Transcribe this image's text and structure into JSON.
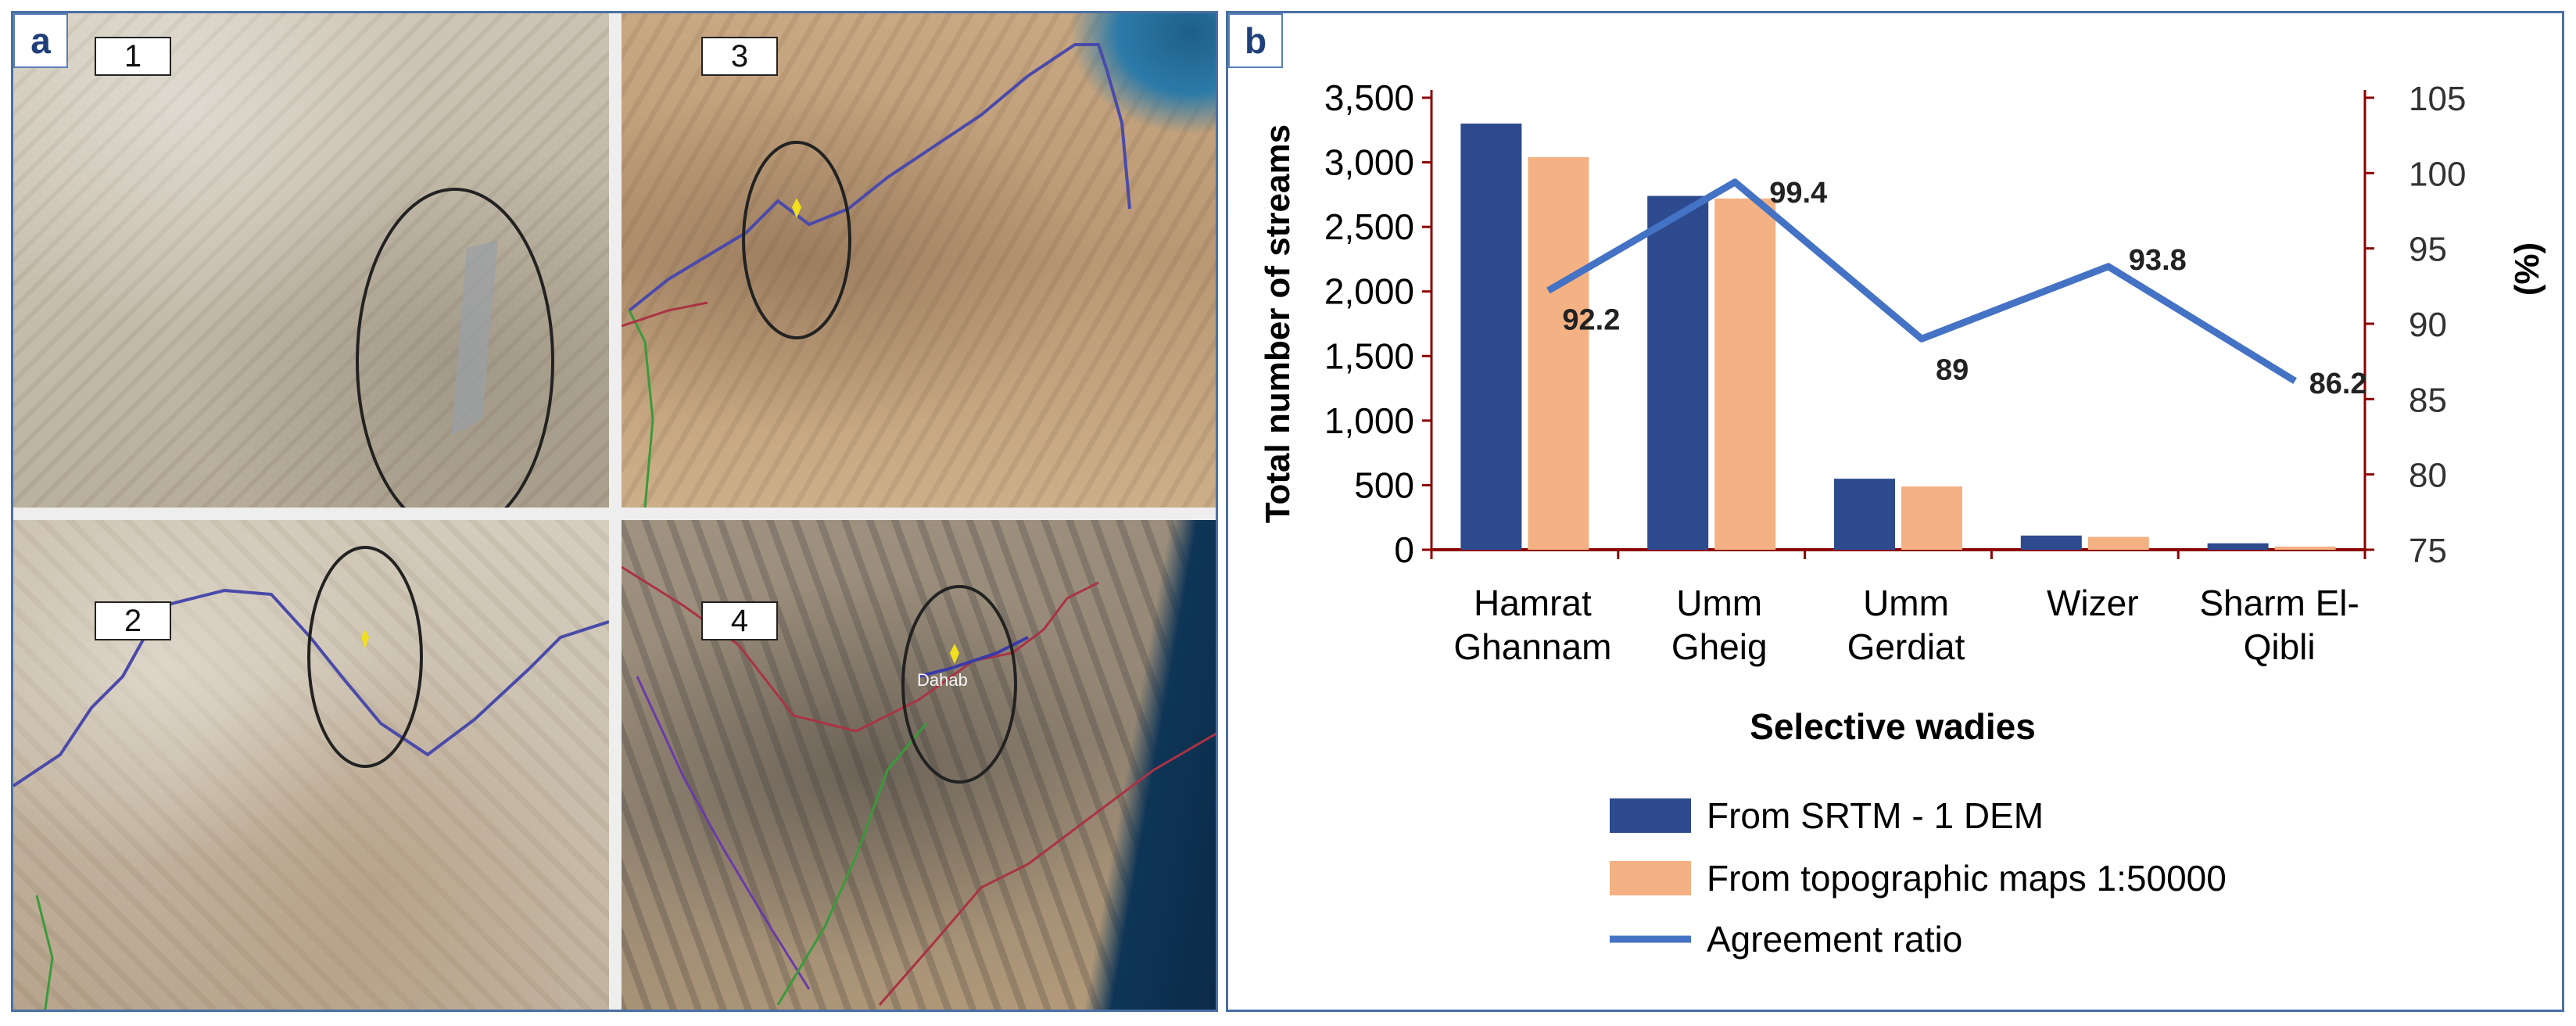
{
  "panel_a": {
    "label": "a",
    "tiles": [
      {
        "number": "1"
      },
      {
        "number": "2"
      },
      {
        "number": "3"
      },
      {
        "number": "4"
      }
    ],
    "tile_4_place_label": "Dahab"
  },
  "panel_b": {
    "label": "b"
  },
  "colors": {
    "srtm": "#2e4a8e",
    "topo": "#f4b183",
    "agreement": "#4472c4",
    "axis": "#8b0000",
    "frame": "#4a6fa5"
  },
  "chart_data": {
    "type": "bar",
    "categories": [
      [
        "Hamrat",
        "Ghannam"
      ],
      [
        "Umm",
        "Gheig"
      ],
      [
        "Umm",
        "Gerdiat"
      ],
      [
        "Wizer"
      ],
      [
        "Sharm El-",
        "Qibli"
      ]
    ],
    "series": [
      {
        "name": "From SRTM - 1 DEM",
        "type": "bar",
        "axis": "left",
        "values": [
          3300,
          2740,
          550,
          110,
          50
        ]
      },
      {
        "name": "From topographic maps 1:50000",
        "type": "bar",
        "axis": "left",
        "values": [
          3040,
          2720,
          490,
          100,
          25
        ]
      },
      {
        "name": "Agreement ratio",
        "type": "line",
        "axis": "right",
        "values": [
          92.2,
          99.4,
          89,
          93.8,
          86.2
        ]
      }
    ],
    "data_labels": [
      "92.2",
      "99.4",
      "89",
      "93.8",
      "86.2"
    ],
    "xlabel": "Selective wadies",
    "ylabel": "Total number of streams",
    "y2label": "(%)",
    "ylim": [
      0,
      3500
    ],
    "y2lim": [
      75,
      105
    ],
    "yticks": [
      "0",
      "500",
      "1,000",
      "1,500",
      "2,000",
      "2,500",
      "3,000",
      "3,500"
    ],
    "y2ticks": [
      "75",
      "80",
      "85",
      "90",
      "95",
      "100",
      "105"
    ],
    "legend_position": "bottom"
  }
}
